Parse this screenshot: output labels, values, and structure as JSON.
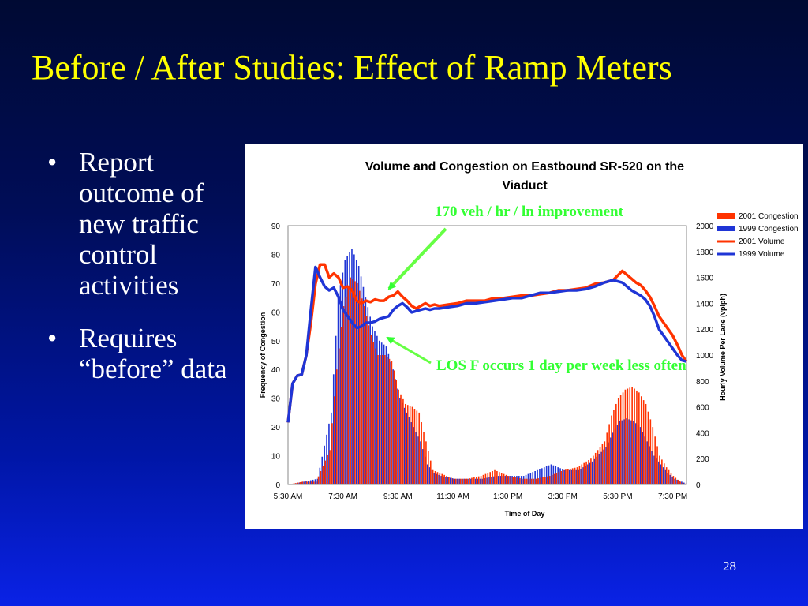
{
  "slide": {
    "title": "Before / After Studies: Effect of Ramp Meters",
    "bullets": [
      "Report outcome of new traffic control activities",
      "Requires “before” data"
    ],
    "bullet_glyph": "•",
    "page_number": "28"
  },
  "annotations": [
    {
      "text": "170 veh / hr / ln improvement"
    },
    {
      "text": "LOS F occurs 1 day per week less often"
    }
  ],
  "colors": {
    "title": "#ffff00",
    "text": "#ffffff",
    "callout": "#33ff33",
    "c2001": "#ff3300",
    "c1999": "#1f35d6"
  },
  "chart_data": {
    "type": "bar",
    "title": "Volume and Congestion on Eastbound SR-520 on the Viaduct",
    "xlabel": "Time of Day",
    "ylabel": "Frequency of Congestion",
    "ylabel_right": "Hourly Volume Per Lane (vplph)",
    "x_ticks": [
      "5:30 AM",
      "7:30 AM",
      "9:30 AM",
      "11:30 AM",
      "1:30 PM",
      "3:30 PM",
      "5:30 PM",
      "7:30 PM"
    ],
    "ylim": [
      0,
      90
    ],
    "y_ticks": [
      0,
      10,
      20,
      30,
      40,
      50,
      60,
      70,
      80,
      90
    ],
    "ylim_right": [
      0,
      2000
    ],
    "y_ticks_right": [
      0,
      200,
      400,
      600,
      800,
      1000,
      1200,
      1400,
      1600,
      1800,
      2000
    ],
    "legend_position": "top-right",
    "series": [
      {
        "name": "2001 Congestion",
        "kind": "bar",
        "axis": "left",
        "points": [
          [
            "5:30 AM",
            0
          ],
          [
            "6:00 AM",
            1
          ],
          [
            "6:30 AM",
            1
          ],
          [
            "7:00 AM",
            12
          ],
          [
            "7:15 AM",
            40
          ],
          [
            "7:30 AM",
            62
          ],
          [
            "7:45 AM",
            72
          ],
          [
            "8:00 AM",
            70
          ],
          [
            "8:15 AM",
            62
          ],
          [
            "8:30 AM",
            52
          ],
          [
            "8:45 AM",
            45
          ],
          [
            "9:00 AM",
            45
          ],
          [
            "9:15 AM",
            43
          ],
          [
            "9:30 AM",
            33
          ],
          [
            "9:45 AM",
            28
          ],
          [
            "10:00 AM",
            27
          ],
          [
            "10:15 AM",
            25
          ],
          [
            "10:30 AM",
            15
          ],
          [
            "10:45 AM",
            5
          ],
          [
            "11:00 AM",
            4
          ],
          [
            "11:30 AM",
            2
          ],
          [
            "12:00 PM",
            2
          ],
          [
            "12:30 PM",
            3
          ],
          [
            "1:00 PM",
            5
          ],
          [
            "1:30 PM",
            3
          ],
          [
            "2:00 PM",
            2
          ],
          [
            "2:30 PM",
            2
          ],
          [
            "3:00 PM",
            3
          ],
          [
            "3:30 PM",
            5
          ],
          [
            "4:00 PM",
            6
          ],
          [
            "4:30 PM",
            9
          ],
          [
            "5:00 PM",
            15
          ],
          [
            "5:15 PM",
            24
          ],
          [
            "5:30 PM",
            30
          ],
          [
            "5:45 PM",
            33
          ],
          [
            "6:00 PM",
            34
          ],
          [
            "6:15 PM",
            32
          ],
          [
            "6:30 PM",
            28
          ],
          [
            "6:45 PM",
            20
          ],
          [
            "7:00 PM",
            10
          ],
          [
            "7:15 PM",
            6
          ],
          [
            "7:30 PM",
            3
          ],
          [
            "7:45 PM",
            1
          ],
          [
            "8:00 PM",
            0
          ]
        ]
      },
      {
        "name": "1999 Congestion",
        "kind": "bar",
        "axis": "left",
        "points": [
          [
            "5:30 AM",
            0
          ],
          [
            "6:00 AM",
            1
          ],
          [
            "6:30 AM",
            2
          ],
          [
            "7:00 AM",
            25
          ],
          [
            "7:15 AM",
            65
          ],
          [
            "7:30 AM",
            78
          ],
          [
            "7:45 AM",
            82
          ],
          [
            "8:00 AM",
            76
          ],
          [
            "8:15 AM",
            65
          ],
          [
            "8:30 AM",
            55
          ],
          [
            "8:45 AM",
            50
          ],
          [
            "9:00 AM",
            48
          ],
          [
            "9:15 AM",
            40
          ],
          [
            "9:30 AM",
            30
          ],
          [
            "9:45 AM",
            25
          ],
          [
            "10:00 AM",
            20
          ],
          [
            "10:15 AM",
            15
          ],
          [
            "10:30 AM",
            7
          ],
          [
            "10:45 AM",
            4
          ],
          [
            "11:00 AM",
            3
          ],
          [
            "11:30 AM",
            2
          ],
          [
            "12:00 PM",
            2
          ],
          [
            "12:30 PM",
            2
          ],
          [
            "1:00 PM",
            3
          ],
          [
            "1:30 PM",
            3
          ],
          [
            "2:00 PM",
            3
          ],
          [
            "2:30 PM",
            5
          ],
          [
            "3:00 PM",
            7
          ],
          [
            "3:30 PM",
            5
          ],
          [
            "4:00 PM",
            5
          ],
          [
            "4:30 PM",
            8
          ],
          [
            "5:00 PM",
            13
          ],
          [
            "5:15 PM",
            18
          ],
          [
            "5:30 PM",
            22
          ],
          [
            "5:45 PM",
            23
          ],
          [
            "6:00 PM",
            22
          ],
          [
            "6:15 PM",
            20
          ],
          [
            "6:30 PM",
            15
          ],
          [
            "6:45 PM",
            10
          ],
          [
            "7:00 PM",
            7
          ],
          [
            "7:15 PM",
            4
          ],
          [
            "7:30 PM",
            2
          ],
          [
            "7:45 PM",
            1
          ],
          [
            "8:00 PM",
            0
          ]
        ]
      },
      {
        "name": "2001 Volume",
        "kind": "line",
        "axis": "right",
        "points": [
          [
            "5:30 AM",
            480
          ],
          [
            "5:40 AM",
            780
          ],
          [
            "5:50 AM",
            840
          ],
          [
            "6:00 AM",
            850
          ],
          [
            "6:10 AM",
            1000
          ],
          [
            "6:20 AM",
            1250
          ],
          [
            "6:30 AM",
            1550
          ],
          [
            "6:40 AM",
            1700
          ],
          [
            "6:50 AM",
            1700
          ],
          [
            "7:00 AM",
            1600
          ],
          [
            "7:10 AM",
            1630
          ],
          [
            "7:20 AM",
            1600
          ],
          [
            "7:30 AM",
            1520
          ],
          [
            "7:40 AM",
            1530
          ],
          [
            "7:50 AM",
            1500
          ],
          [
            "8:00 AM",
            1420
          ],
          [
            "8:10 AM",
            1400
          ],
          [
            "8:20 AM",
            1420
          ],
          [
            "8:30 AM",
            1410
          ],
          [
            "8:40 AM",
            1430
          ],
          [
            "8:50 AM",
            1420
          ],
          [
            "9:00 AM",
            1420
          ],
          [
            "9:10 AM",
            1450
          ],
          [
            "9:20 AM",
            1460
          ],
          [
            "9:30 AM",
            1490
          ],
          [
            "9:40 AM",
            1450
          ],
          [
            "9:50 AM",
            1420
          ],
          [
            "10:00 AM",
            1380
          ],
          [
            "10:10 AM",
            1360
          ],
          [
            "10:20 AM",
            1380
          ],
          [
            "10:30 AM",
            1400
          ],
          [
            "10:40 AM",
            1380
          ],
          [
            "10:50 AM",
            1390
          ],
          [
            "11:00 AM",
            1380
          ],
          [
            "11:20 AM",
            1390
          ],
          [
            "11:40 AM",
            1400
          ],
          [
            "12:00 PM",
            1420
          ],
          [
            "12:20 PM",
            1420
          ],
          [
            "12:40 PM",
            1420
          ],
          [
            "1:00 PM",
            1440
          ],
          [
            "1:20 PM",
            1440
          ],
          [
            "1:40 PM",
            1450
          ],
          [
            "2:00 PM",
            1460
          ],
          [
            "2:20 PM",
            1460
          ],
          [
            "2:40 PM",
            1470
          ],
          [
            "3:00 PM",
            1480
          ],
          [
            "3:20 PM",
            1500
          ],
          [
            "3:40 PM",
            1500
          ],
          [
            "4:00 PM",
            1510
          ],
          [
            "4:20 PM",
            1520
          ],
          [
            "4:40 PM",
            1550
          ],
          [
            "5:00 PM",
            1560
          ],
          [
            "5:20 PM",
            1580
          ],
          [
            "5:40 PM",
            1650
          ],
          [
            "5:50 PM",
            1620
          ],
          [
            "6:00 PM",
            1590
          ],
          [
            "6:10 PM",
            1560
          ],
          [
            "6:20 PM",
            1540
          ],
          [
            "6:30 PM",
            1500
          ],
          [
            "6:40 PM",
            1450
          ],
          [
            "6:50 PM",
            1380
          ],
          [
            "7:00 PM",
            1300
          ],
          [
            "7:10 PM",
            1250
          ],
          [
            "7:20 PM",
            1200
          ],
          [
            "7:30 PM",
            1150
          ],
          [
            "7:40 PM",
            1080
          ],
          [
            "7:50 PM",
            1000
          ],
          [
            "8:00 PM",
            950
          ]
        ]
      },
      {
        "name": "1999 Volume",
        "kind": "line",
        "axis": "right",
        "points": [
          [
            "5:30 AM",
            480
          ],
          [
            "5:40 AM",
            780
          ],
          [
            "5:50 AM",
            840
          ],
          [
            "6:00 AM",
            850
          ],
          [
            "6:10 AM",
            1000
          ],
          [
            "6:20 AM",
            1350
          ],
          [
            "6:30 AM",
            1680
          ],
          [
            "6:40 AM",
            1600
          ],
          [
            "6:50 AM",
            1530
          ],
          [
            "7:00 AM",
            1500
          ],
          [
            "7:10 AM",
            1520
          ],
          [
            "7:20 AM",
            1450
          ],
          [
            "7:30 AM",
            1350
          ],
          [
            "7:40 AM",
            1300
          ],
          [
            "7:50 AM",
            1250
          ],
          [
            "8:00 AM",
            1210
          ],
          [
            "8:10 AM",
            1220
          ],
          [
            "8:20 AM",
            1250
          ],
          [
            "8:30 AM",
            1250
          ],
          [
            "8:40 AM",
            1260
          ],
          [
            "8:50 AM",
            1280
          ],
          [
            "9:00 AM",
            1290
          ],
          [
            "9:10 AM",
            1300
          ],
          [
            "9:20 AM",
            1350
          ],
          [
            "9:30 AM",
            1380
          ],
          [
            "9:40 AM",
            1400
          ],
          [
            "9:50 AM",
            1370
          ],
          [
            "10:00 AM",
            1330
          ],
          [
            "10:10 AM",
            1340
          ],
          [
            "10:20 AM",
            1350
          ],
          [
            "10:30 AM",
            1360
          ],
          [
            "10:40 AM",
            1350
          ],
          [
            "10:50 AM",
            1360
          ],
          [
            "11:00 AM",
            1360
          ],
          [
            "11:20 AM",
            1370
          ],
          [
            "11:40 AM",
            1380
          ],
          [
            "12:00 PM",
            1400
          ],
          [
            "12:20 PM",
            1400
          ],
          [
            "12:40 PM",
            1410
          ],
          [
            "1:00 PM",
            1420
          ],
          [
            "1:20 PM",
            1430
          ],
          [
            "1:40 PM",
            1440
          ],
          [
            "2:00 PM",
            1440
          ],
          [
            "2:20 PM",
            1460
          ],
          [
            "2:40 PM",
            1480
          ],
          [
            "3:00 PM",
            1480
          ],
          [
            "3:20 PM",
            1490
          ],
          [
            "3:40 PM",
            1500
          ],
          [
            "4:00 PM",
            1500
          ],
          [
            "4:20 PM",
            1510
          ],
          [
            "4:40 PM",
            1530
          ],
          [
            "5:00 PM",
            1560
          ],
          [
            "5:20 PM",
            1580
          ],
          [
            "5:40 PM",
            1560
          ],
          [
            "5:50 PM",
            1530
          ],
          [
            "6:00 PM",
            1500
          ],
          [
            "6:10 PM",
            1480
          ],
          [
            "6:20 PM",
            1460
          ],
          [
            "6:30 PM",
            1430
          ],
          [
            "6:40 PM",
            1380
          ],
          [
            "6:50 PM",
            1300
          ],
          [
            "7:00 PM",
            1200
          ],
          [
            "7:10 PM",
            1150
          ],
          [
            "7:20 PM",
            1100
          ],
          [
            "7:30 PM",
            1050
          ],
          [
            "7:40 PM",
            1000
          ],
          [
            "7:50 PM",
            960
          ],
          [
            "8:00 PM",
            950
          ]
        ]
      }
    ]
  }
}
